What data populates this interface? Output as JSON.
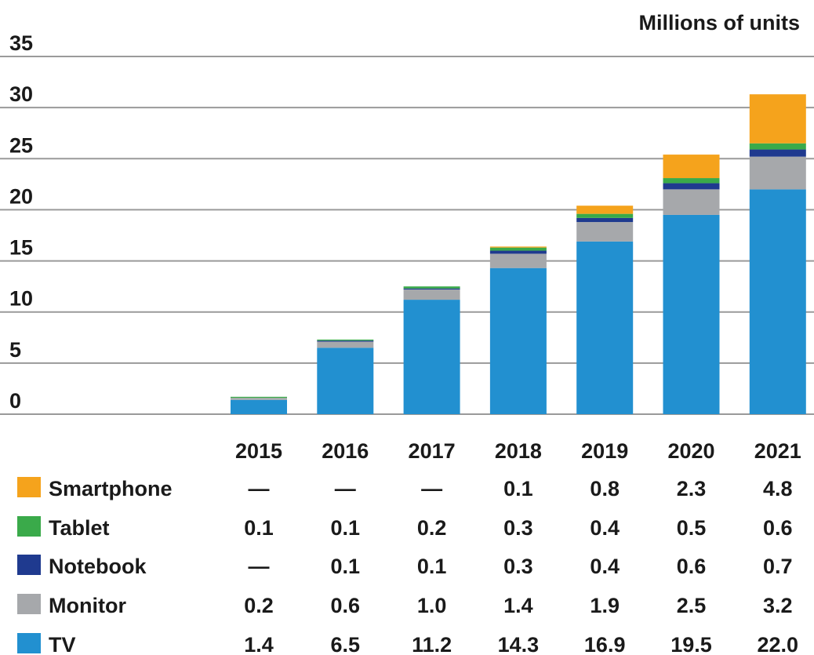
{
  "chart_data": {
    "type": "stacked_bar",
    "ylabel": "Millions of units",
    "categories": [
      "2015",
      "2016",
      "2017",
      "2018",
      "2019",
      "2020",
      "2021"
    ],
    "series": [
      {
        "name": "Smartphone",
        "color": "#f5a31c",
        "values": [
          null,
          null,
          null,
          0.1,
          0.8,
          2.3,
          4.8
        ],
        "value_labels": [
          "—",
          "—",
          "—",
          "0.1",
          "0.8",
          "2.3",
          "4.8"
        ]
      },
      {
        "name": "Tablet",
        "color": "#3aaa4a",
        "values": [
          0.1,
          0.1,
          0.2,
          0.3,
          0.4,
          0.5,
          0.6
        ],
        "value_labels": [
          "0.1",
          "0.1",
          "0.2",
          "0.3",
          "0.4",
          "0.5",
          "0.6"
        ]
      },
      {
        "name": "Notebook",
        "color": "#1f3a8f",
        "values": [
          null,
          0.1,
          0.1,
          0.3,
          0.4,
          0.6,
          0.7
        ],
        "value_labels": [
          "—",
          "0.1",
          "0.1",
          "0.3",
          "0.4",
          "0.6",
          "0.7"
        ]
      },
      {
        "name": "Monitor",
        "color": "#a6a8ab",
        "values": [
          0.2,
          0.6,
          1.0,
          1.4,
          1.9,
          2.5,
          3.2
        ],
        "value_labels": [
          "0.2",
          "0.6",
          "1.0",
          "1.4",
          "1.9",
          "2.5",
          "3.2"
        ]
      },
      {
        "name": "TV",
        "color": "#2290d0",
        "values": [
          1.4,
          6.5,
          11.2,
          14.3,
          16.9,
          19.5,
          22.0
        ],
        "value_labels": [
          "1.4",
          "6.5",
          "11.2",
          "14.3",
          "16.9",
          "19.5",
          "22.0"
        ]
      }
    ],
    "ylim": [
      0,
      35
    ],
    "yticks": [
      0,
      5,
      10,
      15,
      20,
      25,
      30,
      35
    ],
    "grid": true
  }
}
